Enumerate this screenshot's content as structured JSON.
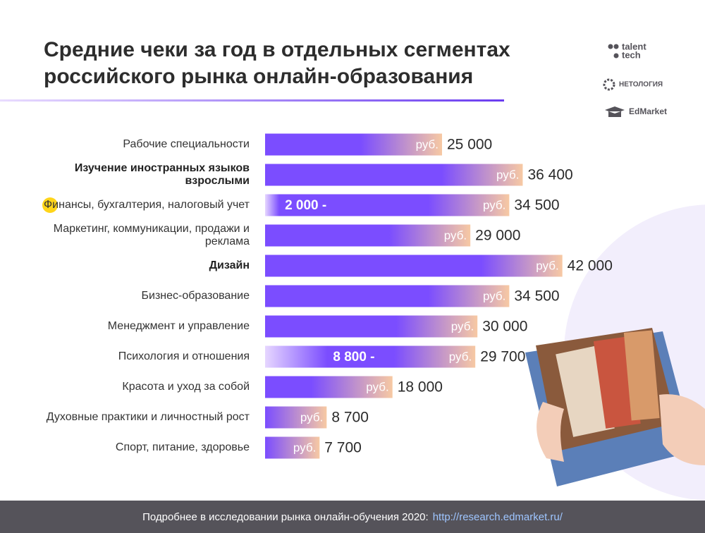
{
  "chart_data": {
    "type": "bar",
    "title": "Средние чеки за год в отдельных сегментах российского рынка онлайн-образования",
    "categories": [
      "Рабочие специальности",
      "Изучение иностранных языков взрослыми",
      "Финансы, бухгалтерия, налоговый учет",
      "Маркетинг, коммуникации, продажи и реклама",
      "Дизайн",
      "Бизнес-образование",
      "Менеджмент и управление",
      "Психология и отношения",
      "Красота и уход за собой",
      "Духовные практики и личностный рост",
      "Спорт, питание, здоровье"
    ],
    "emphasized": [
      false,
      true,
      false,
      false,
      true,
      false,
      false,
      false,
      false,
      false,
      false
    ],
    "values": [
      25000,
      36400,
      34500,
      29000,
      42000,
      34500,
      30000,
      29700,
      18000,
      8700,
      7700
    ],
    "value_labels": [
      "25 000",
      "36 400",
      "34 500",
      "29 000",
      "42 000",
      "34 500",
      "30 000",
      "29 700",
      "18 000",
      "8 700",
      "7 700"
    ],
    "range_low": [
      null,
      null,
      2000,
      null,
      null,
      null,
      null,
      8800,
      null,
      null,
      null
    ],
    "range_low_labels": [
      null,
      null,
      "2 000 -",
      null,
      null,
      null,
      null,
      "8 800 -",
      null,
      null,
      null
    ],
    "unit": "руб.",
    "xlim": [
      0,
      50000
    ],
    "color": "#7b4dff",
    "end_color": "#f7c9a3"
  },
  "brands": [
    "talent",
    "tech",
    "НЕТОЛОГИЯ",
    "EdMarket"
  ],
  "footer": {
    "text": "Подробнее в исследовании рынка онлайн-обучения 2020:",
    "link": "http://research.edmarket.ru/"
  }
}
